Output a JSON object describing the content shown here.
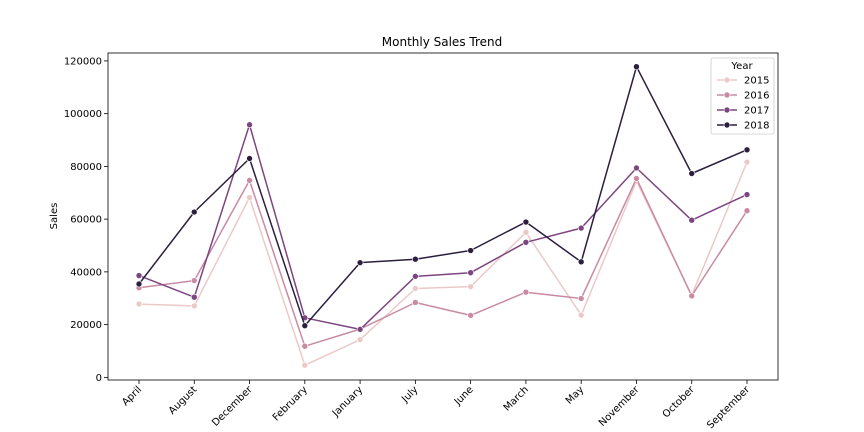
{
  "chart_data": {
    "type": "line",
    "title": "Monthly Sales Trend",
    "xlabel": "",
    "ylabel": "Sales",
    "ylim": [
      -1000,
      123000
    ],
    "yticks": [
      0,
      20000,
      40000,
      60000,
      80000,
      100000,
      120000
    ],
    "categories": [
      "April",
      "August",
      "December",
      "February",
      "January",
      "July",
      "June",
      "March",
      "May",
      "November",
      "October",
      "September"
    ],
    "legend": {
      "title": "Year",
      "placement": "top-right"
    },
    "grid": false,
    "series": [
      {
        "name": "2015",
        "color": "#ecc9c9",
        "values": [
          27800,
          27100,
          68200,
          4600,
          14300,
          33700,
          34400,
          55000,
          23600,
          74400,
          31100,
          81600
        ]
      },
      {
        "name": "2016",
        "color": "#c98aa3",
        "values": [
          34000,
          36700,
          74700,
          11800,
          18300,
          28400,
          23500,
          32300,
          29900,
          75400,
          30900,
          63200
        ]
      },
      {
        "name": "2017",
        "color": "#7d4580",
        "values": [
          38600,
          30400,
          95800,
          22600,
          18200,
          38300,
          39700,
          51200,
          56600,
          79400,
          59600,
          69300
        ]
      },
      {
        "name": "2018",
        "color": "#2b1e3e",
        "values": [
          35400,
          62700,
          83000,
          19600,
          43500,
          44800,
          48100,
          58900,
          43800,
          117800,
          77300,
          86300
        ]
      }
    ]
  }
}
